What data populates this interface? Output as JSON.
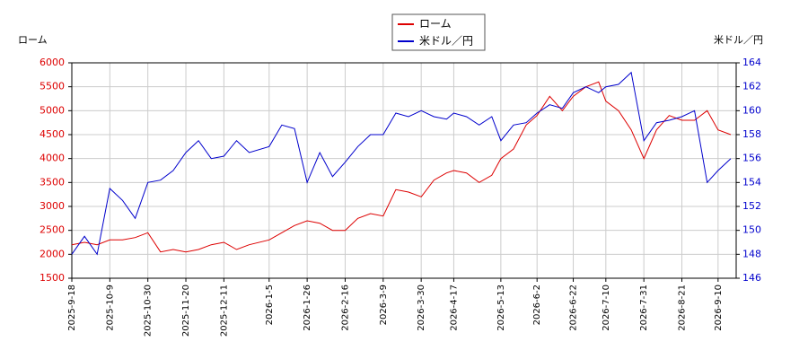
{
  "chart_data": {
    "type": "line",
    "y_label": "ローム",
    "y2_label": "米ドル／円",
    "x": [
      "2025-9-18",
      "2025-9-25",
      "2025-10-2",
      "2025-10-9",
      "2025-10-16",
      "2025-10-23",
      "2025-10-30",
      "2025-11-6",
      "2025-11-13",
      "2025-11-20",
      "2025-11-27",
      "2025-12-4",
      "2025-12-11",
      "2025-12-18",
      "2025-12-25",
      "2026-1-5",
      "2026-1-12",
      "2026-1-19",
      "2026-1-26",
      "2026-2-2",
      "2026-2-9",
      "2026-2-16",
      "2026-2-23",
      "2026-3-2",
      "2026-3-9",
      "2026-3-16",
      "2026-3-23",
      "2026-3-30",
      "2026-4-6",
      "2026-4-13",
      "2026-4-17",
      "2026-4-24",
      "2026-5-1",
      "2026-5-8",
      "2026-5-13",
      "2026-5-20",
      "2026-5-27",
      "2026-6-2",
      "2026-6-9",
      "2026-6-16",
      "2026-6-22",
      "2026-6-29",
      "2026-7-6",
      "2026-7-10",
      "2026-7-17",
      "2026-7-24",
      "2026-7-31",
      "2026-8-7",
      "2026-8-14",
      "2026-8-21",
      "2026-8-28",
      "2026-9-4",
      "2026-9-10",
      "2026-9-17"
    ],
    "series": [
      {
        "name": "ローム",
        "color": "#dd0000",
        "axis": "y",
        "values": [
          2200,
          2250,
          2200,
          2300,
          2300,
          2350,
          2450,
          2050,
          2100,
          2050,
          2100,
          2200,
          2250,
          2100,
          2200,
          2300,
          2450,
          2600,
          2700,
          2650,
          2500,
          2500,
          2750,
          2850,
          2800,
          3350,
          3300,
          3200,
          3550,
          3700,
          3750,
          3700,
          3500,
          3650,
          4000,
          4200,
          4700,
          4900,
          5300,
          5000,
          5300,
          5500,
          5600,
          5200,
          5000,
          4600,
          4000,
          4600,
          4900,
          4800,
          4800,
          5000,
          4600,
          4500
        ]
      },
      {
        "name": "米ドル／円",
        "color": "#0000cc",
        "axis": "y2",
        "values": [
          148,
          149.5,
          148,
          153.5,
          152.5,
          151,
          154,
          154.2,
          155,
          156.5,
          157.5,
          156,
          156.2,
          157.5,
          156.5,
          157,
          158.8,
          158.5,
          154,
          156.5,
          154.5,
          155.7,
          157,
          158,
          158,
          159.8,
          159.5,
          160,
          159.5,
          159.3,
          159.8,
          159.5,
          158.8,
          159.5,
          157.5,
          158.8,
          159,
          159.8,
          160.5,
          160.2,
          161.5,
          162,
          161.5,
          162,
          162.2,
          163.2,
          157.5,
          159,
          159.2,
          159.5,
          160,
          154,
          155,
          156
        ]
      }
    ],
    "xlim": [
      "2025-9-18",
      "2026-9-20"
    ],
    "xticks": [
      "2025-9-18",
      "2025-10-9",
      "2025-10-30",
      "2025-11-20",
      "2025-12-11",
      "2026-1-5",
      "2026-1-26",
      "2026-2-16",
      "2026-3-9",
      "2026-3-30",
      "2026-4-17",
      "2026-5-13",
      "2026-6-2",
      "2026-6-22",
      "2026-7-10",
      "2026-7-31",
      "2026-8-21",
      "2026-9-10"
    ],
    "ylim": [
      1500,
      6000
    ],
    "yticks": [
      1500,
      2000,
      2500,
      3000,
      3500,
      4000,
      4500,
      5000,
      5500,
      6000
    ],
    "y2lim": [
      146,
      164
    ],
    "y2ticks": [
      146,
      148,
      150,
      152,
      154,
      156,
      158,
      160,
      162,
      164
    ],
    "grid": true
  }
}
